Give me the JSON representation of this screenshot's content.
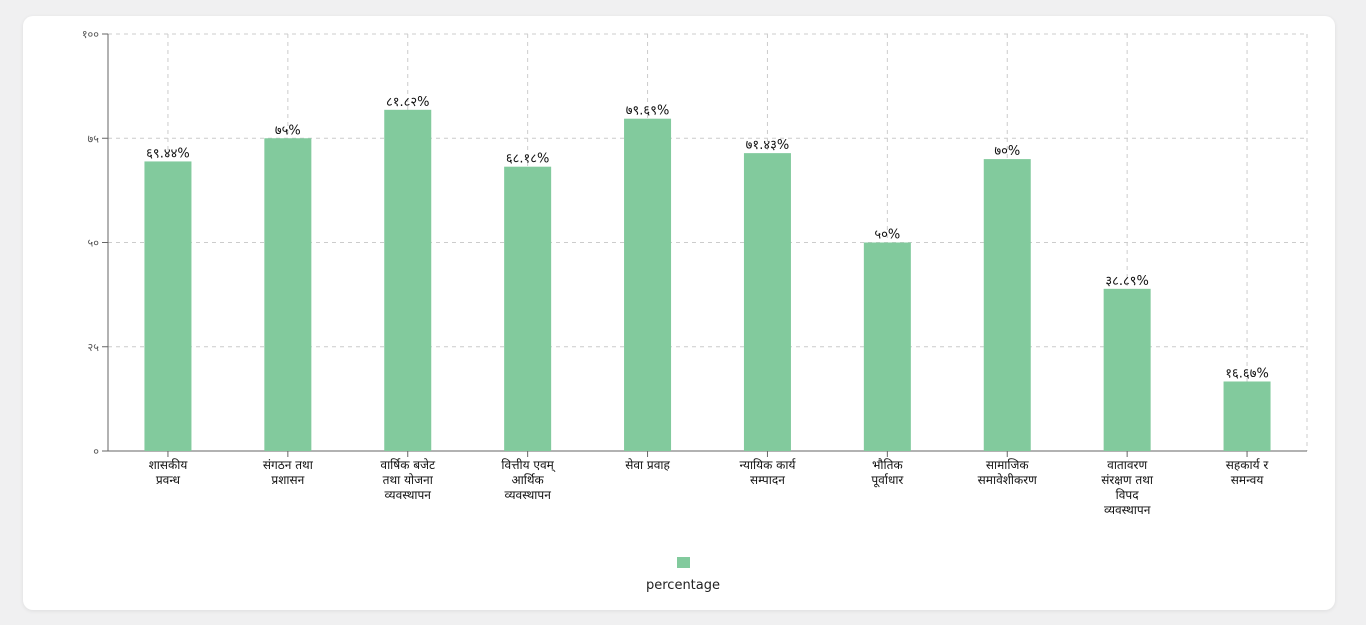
{
  "chart_data": {
    "type": "bar",
    "categories": [
      [
        "शासकीय",
        "प्रवन्ध"
      ],
      [
        "संगठन तथा",
        "प्रशासन"
      ],
      [
        "वार्षिक बजेट",
        "तथा योजना",
        "व्यवस्थापन"
      ],
      [
        "वित्तीय एवम्",
        "आर्थिक",
        "व्यवस्थापन"
      ],
      [
        "सेवा प्रवाह"
      ],
      [
        "न्यायिक कार्य",
        "सम्पादन"
      ],
      [
        "भौतिक",
        "पूर्वाधार"
      ],
      [
        "सामाजिक",
        "समावेशीकरण"
      ],
      [
        "वातावरण",
        "संरक्षण तथा",
        "विपद",
        "व्यवस्थापन"
      ],
      [
        "सहकार्य र",
        "समन्वय"
      ]
    ],
    "values": [
      69.44,
      75,
      81.82,
      68.18,
      79.69,
      71.43,
      50,
      70,
      38.89,
      16.67
    ],
    "data_labels": [
      "६९.४४%",
      "७५%",
      "८१.८२%",
      "६८.१८%",
      "७९.६९%",
      "७१.४३%",
      "५०%",
      "७०%",
      "३८.८९%",
      "१६.६७%"
    ],
    "ylim": [
      0,
      100
    ],
    "yticks": [
      0,
      25,
      50,
      75,
      100
    ],
    "ytick_labels": [
      "०",
      "२५",
      "५०",
      "७५",
      "१००"
    ],
    "grid": true,
    "legend_position": "bottom",
    "series": [
      {
        "name": "percentage",
        "color": "#82ca9d"
      }
    ]
  },
  "colors": {
    "bar": "#82ca9d",
    "grid": "#cccccc",
    "axis": "#666666"
  }
}
